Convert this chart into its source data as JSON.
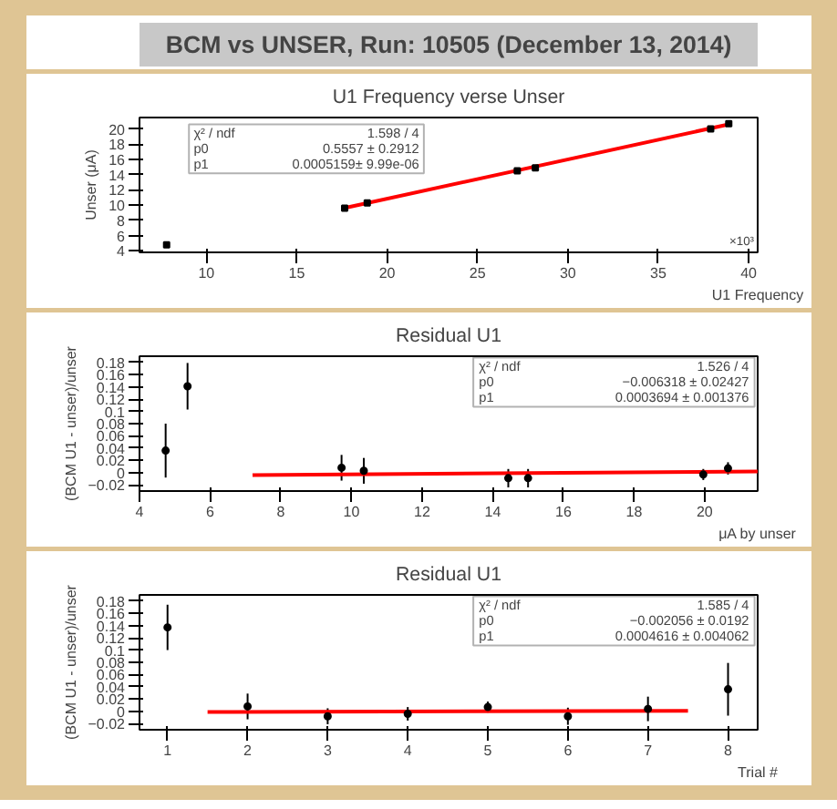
{
  "chart_data": [
    {
      "type": "other",
      "title": "BCM vs UNSER, Run: 10505 (December 13, 2014)"
    },
    {
      "type": "scatter",
      "title": "U1 Frequency verse Unser",
      "xlabel": "U1 Frequency",
      "ylabel": "Unser (μA)",
      "xlim": [
        6.3,
        40.5
      ],
      "xticks": [
        10,
        15,
        20,
        25,
        30,
        35,
        40
      ],
      "ylim": [
        3.8,
        21.5
      ],
      "yticks": [
        4,
        6,
        8,
        10,
        12,
        14,
        16,
        18,
        20
      ],
      "grid": false,
      "marker": "square",
      "annotations": [
        "χ² / ndf",
        "1.598 / 4",
        "p0",
        "0.5557 ± 0.2912",
        "p1",
        "0.0005159± 9.99e-06",
        "×10³"
      ],
      "series": [
        {
          "color": "#000000",
          "x": [
            7.8,
            17.65,
            18.9,
            27.2,
            28.2,
            37.9,
            38.9
          ],
          "values": [
            4.8,
            9.6,
            10.3,
            14.5,
            14.9,
            20.0,
            20.7
          ]
        },
        {
          "type": "line",
          "marker": "none",
          "color": "#ff0000",
          "x": [
            17.6,
            38.9
          ],
          "values": [
            9.6,
            20.6
          ]
        }
      ]
    },
    {
      "type": "scatter",
      "title": "Residual U1",
      "xlabel": "μA by unser",
      "ylabel": "(BCM U1 - unser)/unser",
      "xlim": [
        4,
        21.5
      ],
      "xticks": [
        4,
        6,
        8,
        10,
        12,
        14,
        16,
        18,
        20
      ],
      "ylim": [
        -0.03,
        0.19
      ],
      "yticks": [
        -0.02,
        0,
        0.02,
        0.04,
        0.06,
        0.08,
        0.1,
        0.12,
        0.14,
        0.16,
        0.18
      ],
      "grid": false,
      "marker": "circle",
      "annotations": [
        "χ² / ndf",
        "1.526 / 4",
        "p0",
        "−0.006318 ± 0.02427",
        "p1",
        "0.0003694 ± 0.001376"
      ],
      "series": [
        {
          "color": "#000000",
          "x": [
            4.74,
            5.36,
            9.72,
            10.35,
            14.44,
            15.0,
            19.96,
            20.66
          ],
          "values": [
            0.036,
            0.141,
            0.008,
            0.003,
            -0.009,
            -0.009,
            -0.003,
            0.007
          ],
          "errors": [
            0.044,
            0.038,
            0.021,
            0.021,
            0.015,
            0.015,
            0.009,
            0.01
          ]
        },
        {
          "type": "line",
          "marker": "none",
          "color": "#ff0000",
          "x": [
            7.2,
            21.5
          ],
          "values": [
            -0.004,
            0.002
          ]
        }
      ]
    },
    {
      "type": "scatter",
      "title": "Residual U1",
      "xlabel": "Trial #",
      "ylabel": "(BCM U1 - unser)/unser",
      "xlim": [
        0.65,
        8.37
      ],
      "xticks": [
        1,
        2,
        3,
        4,
        5,
        6,
        7,
        8
      ],
      "ylim": [
        -0.03,
        0.19
      ],
      "yticks": [
        -0.02,
        0,
        0.02,
        0.04,
        0.06,
        0.08,
        0.1,
        0.12,
        0.14,
        0.16,
        0.18
      ],
      "grid": false,
      "marker": "circle",
      "annotations": [
        "χ² / ndf",
        "1.585 / 4",
        "p0",
        "−0.002056 ± 0.0192",
        "p1",
        "0.0004616 ± 0.004062"
      ],
      "series": [
        {
          "color": "#000000",
          "x": [
            1,
            2,
            3,
            4,
            5,
            6,
            7,
            8
          ],
          "values": [
            0.137,
            0.008,
            -0.008,
            -0.004,
            0.007,
            -0.008,
            0.004,
            0.036
          ],
          "errors": [
            0.037,
            0.021,
            0.013,
            0.011,
            0.009,
            0.014,
            0.02,
            0.043
          ]
        },
        {
          "type": "line",
          "marker": "none",
          "color": "#ff0000",
          "x": [
            1.5,
            7.5
          ],
          "values": [
            -0.001,
            0.001
          ]
        }
      ]
    }
  ]
}
